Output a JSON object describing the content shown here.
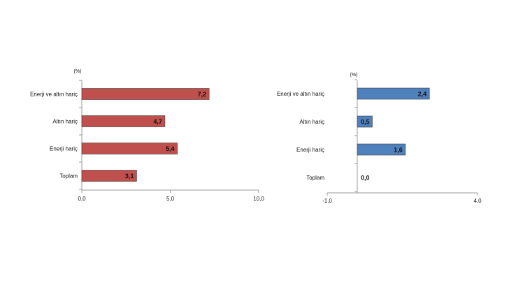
{
  "colors": {
    "left_bar": "#c0504d",
    "right_bar": "#4f81bd",
    "axis": "#9a9a9a"
  },
  "chart_data": [
    {
      "type": "bar",
      "orientation": "horizontal",
      "unit": "(%)",
      "categories": [
        "Enerji ve altın hariç",
        "Altın hariç",
        "Enerji hariç",
        "Toplam"
      ],
      "values": [
        7.2,
        4.7,
        5.4,
        3.1
      ],
      "value_labels": [
        "7,2",
        "4,7",
        "5,4",
        "3,1"
      ],
      "xlim": [
        0,
        10
      ],
      "ticks": [
        0,
        5,
        10
      ],
      "tick_labels": [
        "0,0",
        "5,0",
        "10,0"
      ],
      "grid": false,
      "color": "#c0504d"
    },
    {
      "type": "bar",
      "orientation": "horizontal",
      "unit": "(%)",
      "categories": [
        "Enerji ve altın hariç",
        "Altın hariç",
        "Enerji hariç",
        "Toplam"
      ],
      "values": [
        2.4,
        0.5,
        1.6,
        0.0
      ],
      "value_labels": [
        "2,4",
        "0,5",
        "1,6",
        "0,0"
      ],
      "xlim": [
        -1,
        4
      ],
      "ticks": [
        -1,
        4
      ],
      "tick_labels": [
        "-1,0",
        "4,0"
      ],
      "grid": false,
      "color": "#4f81bd"
    }
  ]
}
